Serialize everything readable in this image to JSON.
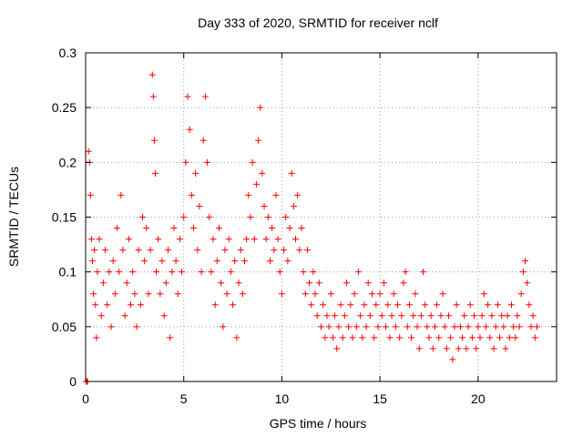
{
  "chart_data": {
    "type": "scatter",
    "title": "Day 333 of 2020, SRMTID for receiver nclf",
    "xlabel": "GPS time / hours",
    "ylabel": "SRMTID / TECUs",
    "xlim": [
      0,
      24
    ],
    "ylim": [
      0,
      0.3
    ],
    "grid": true,
    "marker": "+",
    "marker_color": "#ff0000",
    "x_ticks": [
      0,
      5,
      10,
      15,
      20
    ],
    "x_tick_labels": [
      "0",
      "5",
      "10",
      "15",
      "20"
    ],
    "y_ticks": [
      0,
      0.05,
      0.1,
      0.15,
      0.2,
      0.25,
      0.3
    ],
    "y_tick_labels": [
      "0",
      "0.05",
      "0.1",
      "0.15",
      "0.2",
      "0.25",
      "0.3"
    ],
    "series": [
      {
        "name": "SRMTID",
        "points": [
          [
            0.02,
            0.0
          ],
          [
            0.05,
            0.0
          ],
          [
            0.1,
            0.0
          ],
          [
            0.15,
            0.21
          ],
          [
            0.2,
            0.2
          ],
          [
            0.25,
            0.17
          ],
          [
            0.3,
            0.13
          ],
          [
            0.35,
            0.11
          ],
          [
            0.4,
            0.08
          ],
          [
            0.45,
            0.12
          ],
          [
            0.5,
            0.07
          ],
          [
            0.55,
            0.04
          ],
          [
            0.6,
            0.1
          ],
          [
            0.7,
            0.13
          ],
          [
            0.8,
            0.06
          ],
          [
            0.9,
            0.09
          ],
          [
            1.0,
            0.12
          ],
          [
            1.1,
            0.07
          ],
          [
            1.2,
            0.1
          ],
          [
            1.3,
            0.05
          ],
          [
            1.4,
            0.11
          ],
          [
            1.5,
            0.08
          ],
          [
            1.6,
            0.14
          ],
          [
            1.7,
            0.1
          ],
          [
            1.8,
            0.17
          ],
          [
            1.9,
            0.12
          ],
          [
            2.0,
            0.06
          ],
          [
            2.1,
            0.09
          ],
          [
            2.2,
            0.13
          ],
          [
            2.3,
            0.07
          ],
          [
            2.4,
            0.1
          ],
          [
            2.5,
            0.08
          ],
          [
            2.6,
            0.05
          ],
          [
            2.7,
            0.12
          ],
          [
            2.8,
            0.07
          ],
          [
            2.9,
            0.15
          ],
          [
            3.0,
            0.11
          ],
          [
            3.1,
            0.14
          ],
          [
            3.2,
            0.08
          ],
          [
            3.3,
            0.12
          ],
          [
            3.4,
            0.28
          ],
          [
            3.45,
            0.26
          ],
          [
            3.5,
            0.22
          ],
          [
            3.55,
            0.19
          ],
          [
            3.6,
            0.1
          ],
          [
            3.7,
            0.13
          ],
          [
            3.8,
            0.08
          ],
          [
            3.9,
            0.11
          ],
          [
            4.0,
            0.06
          ],
          [
            4.1,
            0.09
          ],
          [
            4.2,
            0.12
          ],
          [
            4.3,
            0.04
          ],
          [
            4.4,
            0.1
          ],
          [
            4.5,
            0.14
          ],
          [
            4.6,
            0.11
          ],
          [
            4.7,
            0.08
          ],
          [
            4.8,
            0.13
          ],
          [
            4.9,
            0.1
          ],
          [
            5.0,
            0.15
          ],
          [
            5.1,
            0.2
          ],
          [
            5.2,
            0.26
          ],
          [
            5.3,
            0.23
          ],
          [
            5.4,
            0.17
          ],
          [
            5.5,
            0.14
          ],
          [
            5.6,
            0.19
          ],
          [
            5.7,
            0.12
          ],
          [
            5.8,
            0.16
          ],
          [
            5.9,
            0.1
          ],
          [
            6.0,
            0.22
          ],
          [
            6.1,
            0.26
          ],
          [
            6.2,
            0.2
          ],
          [
            6.3,
            0.15
          ],
          [
            6.4,
            0.1
          ],
          [
            6.5,
            0.13
          ],
          [
            6.6,
            0.07
          ],
          [
            6.7,
            0.11
          ],
          [
            6.8,
            0.14
          ],
          [
            6.9,
            0.09
          ],
          [
            7.0,
            0.05
          ],
          [
            7.1,
            0.12
          ],
          [
            7.2,
            0.08
          ],
          [
            7.3,
            0.13
          ],
          [
            7.4,
            0.1
          ],
          [
            7.5,
            0.07
          ],
          [
            7.6,
            0.11
          ],
          [
            7.7,
            0.04
          ],
          [
            7.8,
            0.09
          ],
          [
            7.9,
            0.12
          ],
          [
            8.0,
            0.08
          ],
          [
            8.1,
            0.11
          ],
          [
            8.2,
            0.13
          ],
          [
            8.3,
            0.17
          ],
          [
            8.4,
            0.15
          ],
          [
            8.5,
            0.2
          ],
          [
            8.6,
            0.13
          ],
          [
            8.7,
            0.18
          ],
          [
            8.8,
            0.22
          ],
          [
            8.9,
            0.25
          ],
          [
            9.0,
            0.19
          ],
          [
            9.1,
            0.16
          ],
          [
            9.2,
            0.13
          ],
          [
            9.3,
            0.15
          ],
          [
            9.4,
            0.11
          ],
          [
            9.5,
            0.14
          ],
          [
            9.6,
            0.12
          ],
          [
            9.7,
            0.17
          ],
          [
            9.8,
            0.13
          ],
          [
            9.9,
            0.1
          ],
          [
            10.0,
            0.08
          ],
          [
            10.1,
            0.12
          ],
          [
            10.2,
            0.15
          ],
          [
            10.3,
            0.11
          ],
          [
            10.4,
            0.14
          ],
          [
            10.5,
            0.19
          ],
          [
            10.6,
            0.16
          ],
          [
            10.7,
            0.13
          ],
          [
            10.8,
            0.17
          ],
          [
            10.9,
            0.12
          ],
          [
            11.0,
            0.14
          ],
          [
            11.1,
            0.1
          ],
          [
            11.2,
            0.08
          ],
          [
            11.3,
            0.12
          ],
          [
            11.4,
            0.09
          ],
          [
            11.5,
            0.07
          ],
          [
            11.6,
            0.1
          ],
          [
            11.7,
            0.08
          ],
          [
            11.8,
            0.06
          ],
          [
            11.9,
            0.09
          ],
          [
            12.0,
            0.05
          ],
          [
            12.1,
            0.07
          ],
          [
            12.2,
            0.04
          ],
          [
            12.3,
            0.06
          ],
          [
            12.4,
            0.05
          ],
          [
            12.5,
            0.08
          ],
          [
            12.6,
            0.04
          ],
          [
            12.7,
            0.06
          ],
          [
            12.8,
            0.03
          ],
          [
            12.9,
            0.05
          ],
          [
            13.0,
            0.07
          ],
          [
            13.1,
            0.04
          ],
          [
            13.2,
            0.06
          ],
          [
            13.3,
            0.09
          ],
          [
            13.4,
            0.05
          ],
          [
            13.5,
            0.07
          ],
          [
            13.6,
            0.04
          ],
          [
            13.7,
            0.08
          ],
          [
            13.8,
            0.05
          ],
          [
            13.9,
            0.1
          ],
          [
            14.0,
            0.06
          ],
          [
            14.1,
            0.04
          ],
          [
            14.2,
            0.07
          ],
          [
            14.3,
            0.05
          ],
          [
            14.4,
            0.09
          ],
          [
            14.5,
            0.06
          ],
          [
            14.6,
            0.08
          ],
          [
            14.7,
            0.04
          ],
          [
            14.8,
            0.07
          ],
          [
            14.9,
            0.05
          ],
          [
            15.0,
            0.08
          ],
          [
            15.1,
            0.06
          ],
          [
            15.2,
            0.09
          ],
          [
            15.3,
            0.05
          ],
          [
            15.4,
            0.07
          ],
          [
            15.5,
            0.04
          ],
          [
            15.6,
            0.06
          ],
          [
            15.7,
            0.08
          ],
          [
            15.8,
            0.05
          ],
          [
            15.9,
            0.07
          ],
          [
            16.0,
            0.04
          ],
          [
            16.1,
            0.06
          ],
          [
            16.2,
            0.09
          ],
          [
            16.3,
            0.1
          ],
          [
            16.4,
            0.05
          ],
          [
            16.5,
            0.07
          ],
          [
            16.6,
            0.04
          ],
          [
            16.7,
            0.06
          ],
          [
            16.8,
            0.08
          ],
          [
            16.9,
            0.05
          ],
          [
            17.0,
            0.03
          ],
          [
            17.1,
            0.06
          ],
          [
            17.2,
            0.1
          ],
          [
            17.3,
            0.07
          ],
          [
            17.4,
            0.05
          ],
          [
            17.5,
            0.04
          ],
          [
            17.6,
            0.06
          ],
          [
            17.7,
            0.03
          ],
          [
            17.8,
            0.05
          ],
          [
            17.9,
            0.07
          ],
          [
            18.0,
            0.04
          ],
          [
            18.1,
            0.06
          ],
          [
            18.2,
            0.08
          ],
          [
            18.3,
            0.05
          ],
          [
            18.4,
            0.03
          ],
          [
            18.5,
            0.06
          ],
          [
            18.6,
            0.04
          ],
          [
            18.7,
            0.02
          ],
          [
            18.8,
            0.05
          ],
          [
            18.9,
            0.07
          ],
          [
            19.0,
            0.03
          ],
          [
            19.1,
            0.05
          ],
          [
            19.2,
            0.04
          ],
          [
            19.3,
            0.06
          ],
          [
            19.4,
            0.03
          ],
          [
            19.5,
            0.05
          ],
          [
            19.6,
            0.07
          ],
          [
            19.7,
            0.04
          ],
          [
            19.8,
            0.06
          ],
          [
            19.9,
            0.03
          ],
          [
            20.0,
            0.05
          ],
          [
            20.1,
            0.04
          ],
          [
            20.2,
            0.06
          ],
          [
            20.3,
            0.08
          ],
          [
            20.4,
            0.05
          ],
          [
            20.5,
            0.07
          ],
          [
            20.6,
            0.04
          ],
          [
            20.7,
            0.06
          ],
          [
            20.8,
            0.03
          ],
          [
            20.9,
            0.05
          ],
          [
            21.0,
            0.07
          ],
          [
            21.1,
            0.04
          ],
          [
            21.2,
            0.06
          ],
          [
            21.3,
            0.05
          ],
          [
            21.4,
            0.03
          ],
          [
            21.5,
            0.06
          ],
          [
            21.6,
            0.04
          ],
          [
            21.7,
            0.07
          ],
          [
            21.8,
            0.05
          ],
          [
            21.9,
            0.04
          ],
          [
            22.0,
            0.06
          ],
          [
            22.1,
            0.05
          ],
          [
            22.2,
            0.08
          ],
          [
            22.3,
            0.1
          ],
          [
            22.4,
            0.11
          ],
          [
            22.5,
            0.09
          ],
          [
            22.6,
            0.07
          ],
          [
            22.7,
            0.05
          ],
          [
            22.8,
            0.06
          ],
          [
            22.9,
            0.04
          ],
          [
            23.0,
            0.05
          ]
        ]
      }
    ]
  }
}
